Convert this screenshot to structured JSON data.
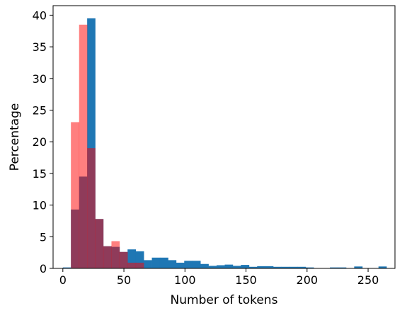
{
  "chart_data": {
    "type": "histogram",
    "xlabel": "Number of tokens",
    "ylabel": "Percentage",
    "xlim": [
      -8,
      272
    ],
    "ylim": [
      0,
      41.5
    ],
    "xticks": [
      0,
      50,
      100,
      150,
      200,
      250
    ],
    "yticks": [
      0,
      5,
      10,
      15,
      20,
      25,
      30,
      35,
      40
    ],
    "grid": false,
    "series": [
      {
        "color": "#1f77b4",
        "alpha": 1.0,
        "bins": [
          {
            "x0": 0,
            "x1": 6.6,
            "y": 0.15
          },
          {
            "x0": 6.6,
            "x1": 13.3,
            "y": 9.3
          },
          {
            "x0": 13.3,
            "x1": 19.9,
            "y": 14.5
          },
          {
            "x0": 19.9,
            "x1": 26.5,
            "y": 39.5
          },
          {
            "x0": 26.5,
            "x1": 33.1,
            "y": 7.8
          },
          {
            "x0": 33.1,
            "x1": 39.8,
            "y": 3.5
          },
          {
            "x0": 39.8,
            "x1": 46.4,
            "y": 3.4
          },
          {
            "x0": 46.4,
            "x1": 53.0,
            "y": 2.6
          },
          {
            "x0": 53.0,
            "x1": 59.7,
            "y": 3.0
          },
          {
            "x0": 59.7,
            "x1": 66.3,
            "y": 2.7
          },
          {
            "x0": 66.3,
            "x1": 72.9,
            "y": 1.3
          },
          {
            "x0": 72.9,
            "x1": 79.5,
            "y": 1.7
          },
          {
            "x0": 79.5,
            "x1": 86.2,
            "y": 1.7
          },
          {
            "x0": 86.2,
            "x1": 92.8,
            "y": 1.3
          },
          {
            "x0": 92.8,
            "x1": 99.4,
            "y": 0.9
          },
          {
            "x0": 99.4,
            "x1": 106.1,
            "y": 1.2
          },
          {
            "x0": 106.1,
            "x1": 112.7,
            "y": 1.2
          },
          {
            "x0": 112.7,
            "x1": 119.3,
            "y": 0.7
          },
          {
            "x0": 119.3,
            "x1": 125.9,
            "y": 0.4
          },
          {
            "x0": 125.9,
            "x1": 132.6,
            "y": 0.5
          },
          {
            "x0": 132.6,
            "x1": 139.2,
            "y": 0.6
          },
          {
            "x0": 139.2,
            "x1": 145.8,
            "y": 0.4
          },
          {
            "x0": 145.8,
            "x1": 152.5,
            "y": 0.55
          },
          {
            "x0": 152.5,
            "x1": 159.1,
            "y": 0.25
          },
          {
            "x0": 159.1,
            "x1": 165.7,
            "y": 0.35
          },
          {
            "x0": 165.7,
            "x1": 172.3,
            "y": 0.35
          },
          {
            "x0": 172.3,
            "x1": 179.0,
            "y": 0.25
          },
          {
            "x0": 179.0,
            "x1": 185.6,
            "y": 0.25
          },
          {
            "x0": 185.6,
            "x1": 192.2,
            "y": 0.25
          },
          {
            "x0": 192.2,
            "x1": 198.9,
            "y": 0.25
          },
          {
            "x0": 198.9,
            "x1": 205.5,
            "y": 0.15
          },
          {
            "x0": 205.5,
            "x1": 212.1,
            "y": 0.05
          },
          {
            "x0": 212.1,
            "x1": 218.7,
            "y": 0.05
          },
          {
            "x0": 218.7,
            "x1": 225.4,
            "y": 0.15
          },
          {
            "x0": 225.4,
            "x1": 232.0,
            "y": 0.15
          },
          {
            "x0": 232.0,
            "x1": 238.6,
            "y": 0.05
          },
          {
            "x0": 238.6,
            "x1": 245.3,
            "y": 0.3
          },
          {
            "x0": 245.3,
            "x1": 251.9,
            "y": 0.05
          },
          {
            "x0": 251.9,
            "x1": 258.5,
            "y": 0.05
          },
          {
            "x0": 258.5,
            "x1": 265.1,
            "y": 0.3
          }
        ]
      },
      {
        "color": "#ff0000",
        "alpha": 0.5,
        "bins": [
          {
            "x0": 6.6,
            "x1": 13.3,
            "y": 23.1
          },
          {
            "x0": 13.3,
            "x1": 19.9,
            "y": 38.5
          },
          {
            "x0": 19.9,
            "x1": 26.5,
            "y": 19.0
          },
          {
            "x0": 26.5,
            "x1": 33.1,
            "y": 7.8
          },
          {
            "x0": 33.1,
            "x1": 39.8,
            "y": 3.5
          },
          {
            "x0": 39.8,
            "x1": 46.4,
            "y": 4.3
          },
          {
            "x0": 46.4,
            "x1": 53.0,
            "y": 2.6
          },
          {
            "x0": 53.0,
            "x1": 59.7,
            "y": 0.9
          },
          {
            "x0": 59.7,
            "x1": 66.3,
            "y": 0.9
          }
        ]
      }
    ]
  }
}
